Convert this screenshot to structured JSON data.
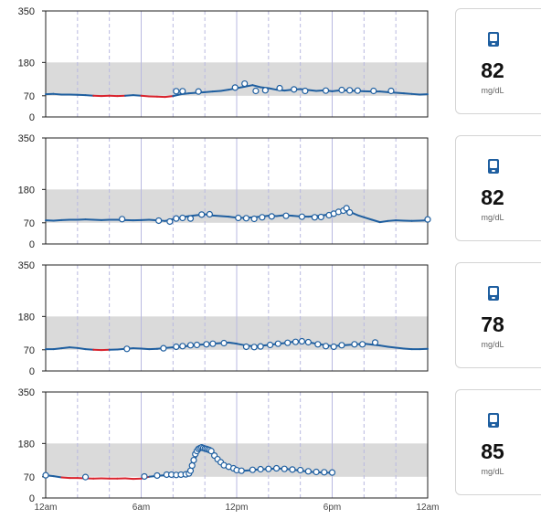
{
  "chart_data": [
    {
      "type": "line",
      "ylim": [
        0,
        350
      ],
      "yticks": [
        "350",
        "180",
        "70",
        "0"
      ],
      "target_range": [
        70,
        180
      ],
      "low_threshold": 70,
      "x_hours": [
        0,
        24
      ],
      "series": [
        {
          "values": [
            [
              0,
              75
            ],
            [
              0.5,
              76
            ],
            [
              1,
              74
            ],
            [
              1.5,
              74
            ],
            [
              2,
              73
            ],
            [
              2.5,
              72
            ],
            [
              3,
              70
            ],
            [
              3.5,
              69
            ],
            [
              4,
              70
            ],
            [
              4.5,
              69
            ],
            [
              5,
              70
            ],
            [
              5.5,
              72
            ],
            [
              6,
              70
            ],
            [
              6.5,
              68
            ],
            [
              7,
              67
            ],
            [
              7.5,
              66
            ],
            [
              8,
              69
            ],
            [
              8.5,
              75
            ],
            [
              9,
              78
            ],
            [
              9.5,
              80
            ],
            [
              10,
              82
            ],
            [
              10.5,
              84
            ],
            [
              11,
              86
            ],
            [
              11.5,
              90
            ],
            [
              12,
              95
            ],
            [
              12.5,
              100
            ],
            [
              13,
              105
            ],
            [
              13.5,
              98
            ],
            [
              14,
              95
            ],
            [
              14.5,
              90
            ],
            [
              15,
              87
            ],
            [
              15.5,
              90
            ],
            [
              16,
              92
            ],
            [
              16.5,
              89
            ],
            [
              17,
              86
            ],
            [
              17.5,
              88
            ],
            [
              18,
              85
            ],
            [
              18.5,
              88
            ],
            [
              19,
              88
            ],
            [
              19.5,
              86
            ],
            [
              20,
              85
            ],
            [
              20.5,
              84
            ],
            [
              21,
              84
            ],
            [
              21.5,
              82
            ],
            [
              22,
              80
            ],
            [
              22.5,
              78
            ],
            [
              23,
              76
            ],
            [
              23.5,
              74
            ],
            [
              24,
              75
            ]
          ]
        }
      ],
      "readings": [
        [
          8.2,
          85
        ],
        [
          8.6,
          85
        ],
        [
          9.6,
          84
        ],
        [
          11.9,
          97
        ],
        [
          12.5,
          110
        ],
        [
          13.2,
          86
        ],
        [
          13.8,
          88
        ],
        [
          14.7,
          95
        ],
        [
          15.6,
          91
        ],
        [
          16.3,
          86
        ],
        [
          17.6,
          87
        ],
        [
          18.6,
          89
        ],
        [
          19.1,
          88
        ],
        [
          19.6,
          87
        ],
        [
          20.6,
          86
        ],
        [
          21.7,
          86
        ]
      ],
      "card": {
        "value": "82",
        "unit": "mg/dL"
      }
    },
    {
      "type": "line",
      "ylim": [
        0,
        350
      ],
      "yticks": [
        "350",
        "180",
        "70",
        "0"
      ],
      "target_range": [
        70,
        180
      ],
      "low_threshold": 70,
      "x_hours": [
        0,
        24
      ],
      "series": [
        {
          "values": [
            [
              0,
              78
            ],
            [
              0.5,
              77
            ],
            [
              1,
              79
            ],
            [
              1.5,
              80
            ],
            [
              2,
              80
            ],
            [
              2.5,
              81
            ],
            [
              3,
              80
            ],
            [
              3.5,
              79
            ],
            [
              4,
              80
            ],
            [
              4.5,
              80
            ],
            [
              5,
              79
            ],
            [
              5.5,
              78
            ],
            [
              6,
              79
            ],
            [
              6.5,
              80
            ],
            [
              7,
              78
            ],
            [
              7.5,
              76
            ],
            [
              8,
              82
            ],
            [
              8.5,
              88
            ],
            [
              9,
              92
            ],
            [
              9.5,
              95
            ],
            [
              10,
              98
            ],
            [
              10.5,
              94
            ],
            [
              11,
              92
            ],
            [
              11.5,
              90
            ],
            [
              12,
              87
            ],
            [
              12.5,
              86
            ],
            [
              13,
              88
            ],
            [
              13.5,
              90
            ],
            [
              14,
              93
            ],
            [
              14.5,
              92
            ],
            [
              15,
              95
            ],
            [
              15.5,
              93
            ],
            [
              16,
              91
            ],
            [
              16.5,
              90
            ],
            [
              17,
              92
            ],
            [
              17.5,
              95
            ],
            [
              18,
              100
            ],
            [
              18.5,
              108
            ],
            [
              18.8,
              110
            ],
            [
              19.2,
              104
            ],
            [
              19.6,
              95
            ],
            [
              20,
              88
            ],
            [
              20.5,
              80
            ],
            [
              21,
              72
            ],
            [
              21.5,
              76
            ],
            [
              22,
              78
            ],
            [
              22.5,
              77
            ],
            [
              23,
              76
            ],
            [
              23.5,
              77
            ],
            [
              24,
              78
            ]
          ]
        }
      ],
      "readings": [
        [
          4.8,
          82
        ],
        [
          7.1,
          77
        ],
        [
          7.8,
          74
        ],
        [
          8.2,
          84
        ],
        [
          8.6,
          86
        ],
        [
          9.1,
          84
        ],
        [
          9.8,
          97
        ],
        [
          10.3,
          98
        ],
        [
          12.1,
          86
        ],
        [
          12.6,
          85
        ],
        [
          13.1,
          83
        ],
        [
          13.6,
          88
        ],
        [
          14.2,
          91
        ],
        [
          15.1,
          93
        ],
        [
          16.1,
          90
        ],
        [
          16.9,
          88
        ],
        [
          17.3,
          89
        ],
        [
          17.8,
          95
        ],
        [
          18.1,
          100
        ],
        [
          18.4,
          106
        ],
        [
          18.7,
          110
        ],
        [
          18.9,
          118
        ],
        [
          19.1,
          104
        ],
        [
          24,
          81
        ]
      ],
      "card": {
        "value": "82",
        "unit": "mg/dL"
      }
    },
    {
      "type": "line",
      "ylim": [
        0,
        350
      ],
      "yticks": [
        "350",
        "180",
        "70",
        "0"
      ],
      "target_range": [
        70,
        180
      ],
      "low_threshold": 70,
      "x_hours": [
        0,
        24
      ],
      "series": [
        {
          "values": [
            [
              0,
              72
            ],
            [
              0.5,
              72
            ],
            [
              1,
              75
            ],
            [
              1.5,
              78
            ],
            [
              2,
              76
            ],
            [
              2.5,
              72
            ],
            [
              3,
              70
            ],
            [
              3.5,
              69
            ],
            [
              4,
              70
            ],
            [
              4.5,
              71
            ],
            [
              5,
              73
            ],
            [
              5.5,
              75
            ],
            [
              6,
              74
            ],
            [
              6.5,
              72
            ],
            [
              7,
              73
            ],
            [
              7.5,
              76
            ],
            [
              8,
              78
            ],
            [
              8.5,
              80
            ],
            [
              9,
              83
            ],
            [
              9.5,
              86
            ],
            [
              10,
              88
            ],
            [
              10.5,
              90
            ],
            [
              11,
              92
            ],
            [
              11.5,
              94
            ],
            [
              12,
              90
            ],
            [
              12.5,
              85
            ],
            [
              13,
              82
            ],
            [
              13.5,
              83
            ],
            [
              14,
              86
            ],
            [
              14.5,
              89
            ],
            [
              15,
              92
            ],
            [
              15.5,
              96
            ],
            [
              16,
              98
            ],
            [
              16.5,
              95
            ],
            [
              17,
              90
            ],
            [
              17.5,
              86
            ],
            [
              18,
              82
            ],
            [
              18.5,
              84
            ],
            [
              19,
              86
            ],
            [
              19.5,
              88
            ],
            [
              20,
              90
            ],
            [
              20.5,
              87
            ],
            [
              21,
              84
            ],
            [
              21.5,
              80
            ],
            [
              22,
              77
            ],
            [
              22.5,
              74
            ],
            [
              23,
              72
            ],
            [
              23.5,
              72
            ],
            [
              24,
              73
            ]
          ]
        }
      ],
      "readings": [
        [
          5.1,
          73
        ],
        [
          7.4,
          75
        ],
        [
          8.2,
          80
        ],
        [
          8.6,
          82
        ],
        [
          9.1,
          85
        ],
        [
          9.5,
          86
        ],
        [
          10.1,
          88
        ],
        [
          10.5,
          90
        ],
        [
          11.2,
          92
        ],
        [
          12.6,
          80
        ],
        [
          13.1,
          79
        ],
        [
          13.5,
          81
        ],
        [
          14.1,
          86
        ],
        [
          14.6,
          90
        ],
        [
          15.2,
          93
        ],
        [
          15.7,
          96
        ],
        [
          16.1,
          98
        ],
        [
          16.5,
          95
        ],
        [
          17.1,
          88
        ],
        [
          17.6,
          82
        ],
        [
          18.1,
          80
        ],
        [
          18.6,
          85
        ],
        [
          19.4,
          88
        ],
        [
          19.9,
          88
        ],
        [
          20.7,
          94
        ]
      ],
      "card": {
        "value": "78",
        "unit": "mg/dL"
      }
    },
    {
      "type": "line",
      "ylim": [
        0,
        350
      ],
      "yticks": [
        "350",
        "180",
        "70",
        "0"
      ],
      "target_range": [
        70,
        180
      ],
      "low_threshold": 70,
      "x_hours": [
        0,
        24
      ],
      "x_tick_labels": [
        "12am",
        "6am",
        "12pm",
        "6pm",
        "12am"
      ],
      "series": [
        {
          "values": [
            [
              0,
              75
            ],
            [
              0.5,
              72
            ],
            [
              1,
              68
            ],
            [
              1.5,
              66
            ],
            [
              2,
              66
            ],
            [
              2.5,
              65
            ],
            [
              3,
              64
            ],
            [
              3.5,
              65
            ],
            [
              4,
              64
            ],
            [
              4.5,
              64
            ],
            [
              5,
              65
            ],
            [
              5.5,
              63
            ],
            [
              6,
              64
            ],
            [
              6.5,
              70
            ],
            [
              7,
              73
            ],
            [
              7.5,
              75
            ],
            [
              8,
              77
            ],
            [
              8.5,
              77
            ],
            [
              9,
              82
            ],
            [
              9.2,
              100
            ],
            [
              9.4,
              130
            ],
            [
              9.6,
              155
            ],
            [
              9.8,
              160
            ],
            [
              10,
              165
            ],
            [
              10.2,
              160
            ],
            [
              10.5,
              145
            ],
            [
              10.8,
              130
            ],
            [
              11,
              118
            ],
            [
              11.3,
              108
            ],
            [
              11.6,
              100
            ],
            [
              12,
              95
            ],
            [
              12.5,
              90
            ],
            [
              13,
              92
            ],
            [
              13.5,
              95
            ],
            [
              14,
              95
            ],
            [
              14.5,
              98
            ],
            [
              15,
              96
            ],
            [
              15.5,
              94
            ],
            [
              16,
              90
            ],
            [
              16.5,
              87
            ],
            [
              17,
              85
            ],
            [
              17.5,
              84
            ],
            [
              18,
              83
            ]
          ]
        }
      ],
      "readings": [
        [
          0,
          75
        ],
        [
          2.5,
          69
        ],
        [
          6.2,
          71
        ],
        [
          7,
          74
        ],
        [
          7.6,
          77
        ],
        [
          7.9,
          77
        ],
        [
          8.2,
          76
        ],
        [
          8.5,
          77
        ],
        [
          8.8,
          78
        ],
        [
          9.0,
          81
        ],
        [
          9.1,
          90
        ],
        [
          9.2,
          107
        ],
        [
          9.3,
          125
        ],
        [
          9.4,
          145
        ],
        [
          9.5,
          155
        ],
        [
          9.6,
          162
        ],
        [
          9.7,
          165
        ],
        [
          9.8,
          167
        ],
        [
          9.9,
          165
        ],
        [
          10,
          163
        ],
        [
          10.1,
          162
        ],
        [
          10.2,
          160
        ],
        [
          10.3,
          158
        ],
        [
          10.4,
          155
        ],
        [
          10.6,
          140
        ],
        [
          10.8,
          128
        ],
        [
          11,
          118
        ],
        [
          11.2,
          108
        ],
        [
          11.5,
          103
        ],
        [
          11.8,
          98
        ],
        [
          12,
          92
        ],
        [
          12.3,
          90
        ],
        [
          13,
          93
        ],
        [
          13.5,
          95
        ],
        [
          14,
          96
        ],
        [
          14.5,
          98
        ],
        [
          15,
          96
        ],
        [
          15.5,
          94
        ],
        [
          16,
          92
        ],
        [
          16.5,
          88
        ],
        [
          17,
          86
        ],
        [
          17.5,
          85
        ],
        [
          18,
          84
        ]
      ],
      "card": {
        "value": "85",
        "unit": "mg/dL"
      }
    }
  ],
  "icons": {
    "card_icon": "glucose-meter-icon"
  },
  "colors": {
    "line": "#1f5fa0",
    "low": "#d9232d",
    "range": "#dadada",
    "marker": "#1f5fa0"
  }
}
